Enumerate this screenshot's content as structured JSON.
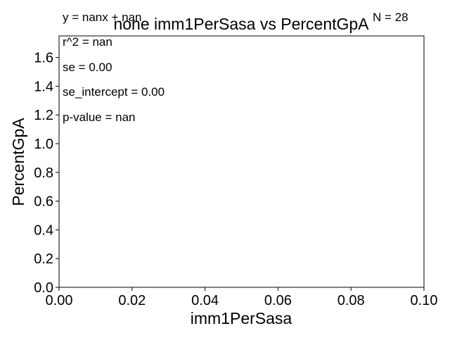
{
  "chart_data": {
    "type": "scatter",
    "title": "none imm1PerSasa vs PercentGpA",
    "xlabel": "imm1PerSasa",
    "ylabel": "PercentGpA",
    "xlim": [
      0.0,
      0.1
    ],
    "ylim": [
      0.0,
      1.75
    ],
    "x_ticks": [
      "0.00",
      "0.02",
      "0.04",
      "0.06",
      "0.08",
      "0.10"
    ],
    "y_ticks": [
      "0.0",
      "0.2",
      "0.4",
      "0.6",
      "0.8",
      "1.0",
      "1.2",
      "1.4",
      "1.6"
    ],
    "x": [],
    "y": [],
    "grid": false,
    "annotations": {
      "equation": "y = nanx + nan",
      "n": "N = 28",
      "r2": "r^2 = nan",
      "se": "se = 0.00",
      "se_intercept": "se_intercept = 0.00",
      "p_value": "p-value = nan"
    }
  }
}
